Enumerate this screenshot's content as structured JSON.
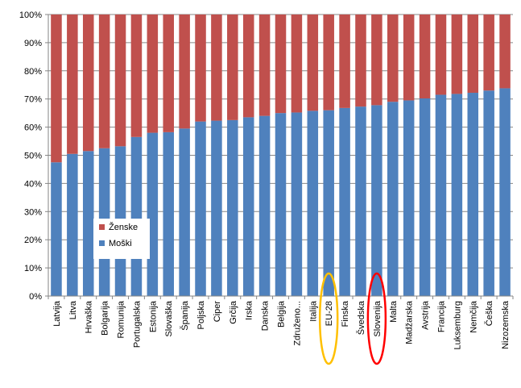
{
  "chart_data": {
    "type": "bar",
    "stacked": true,
    "stack_mode": "percent",
    "ylim": [
      0,
      100
    ],
    "y_ticks": [
      "0%",
      "10%",
      "20%",
      "30%",
      "40%",
      "50%",
      "60%",
      "70%",
      "80%",
      "90%",
      "100%"
    ],
    "grid": true,
    "legend_position": "left-center-inside",
    "categories": [
      "Latvija",
      "Litva",
      "Hrvaška",
      "Bolgarija",
      "Romunija",
      "Portugalska",
      "Estonija",
      "Slovaška",
      "Španija",
      "Poljska",
      "Ciper",
      "Grčija",
      "Irska",
      "Danska",
      "Belgija",
      "Združeno...",
      "Italija",
      "EU-28",
      "Finska",
      "Švedska",
      "Slovenija",
      "Malta",
      "Madžarska",
      "Avstrija",
      "Francija",
      "Luksemburg",
      "Nemčija",
      "Češka",
      "Nizozemska"
    ],
    "series": [
      {
        "name": "Moški",
        "color": "#4f81bd",
        "values": [
          47.5,
          50.5,
          51.5,
          52.5,
          53.2,
          56.5,
          58.0,
          58.2,
          59.5,
          62.0,
          62.3,
          62.5,
          63.5,
          64.0,
          65.0,
          65.2,
          65.8,
          66.0,
          66.8,
          67.3,
          67.8,
          69.0,
          69.5,
          70.2,
          71.5,
          71.8,
          72.2,
          73.0,
          73.8
        ]
      },
      {
        "name": "Ženske",
        "color": "#c0504d",
        "values": [
          52.5,
          49.5,
          48.5,
          47.5,
          46.8,
          43.5,
          42.0,
          41.8,
          40.5,
          38.0,
          37.7,
          37.5,
          36.5,
          36.0,
          35.0,
          34.8,
          34.2,
          34.0,
          33.2,
          32.7,
          32.2,
          31.0,
          30.5,
          29.8,
          28.5,
          28.2,
          27.8,
          27.0,
          26.2
        ]
      }
    ],
    "annotations": [
      {
        "type": "ellipse",
        "target": "EU-28",
        "color": "#ffc000"
      },
      {
        "type": "ellipse",
        "target": "Slovenija",
        "color": "#ff0000"
      }
    ]
  }
}
